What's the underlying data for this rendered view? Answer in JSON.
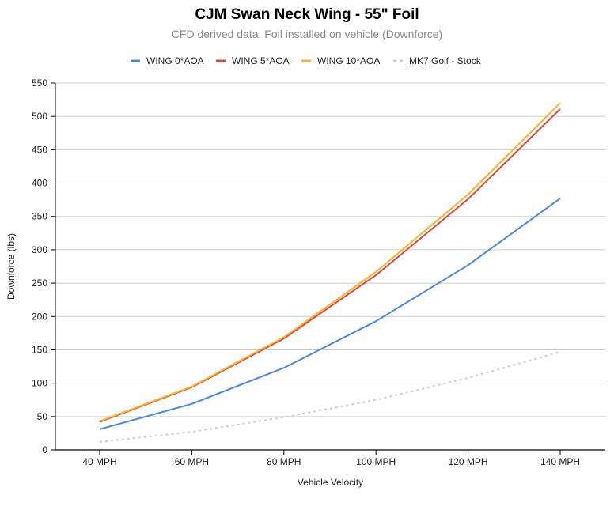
{
  "chart_data": {
    "type": "line",
    "title": "CJM Swan Neck Wing - 55\" Foil",
    "subtitle": "CFD derived data. Foil installed on vehicle (Downforce)",
    "xlabel": "Vehicle Velocity",
    "ylabel": "Downforce (lbs)",
    "categories": [
      "40 MPH",
      "60 MPH",
      "80 MPH",
      "100 MPH",
      "120 MPH",
      "140 MPH"
    ],
    "ylim": [
      0,
      550
    ],
    "yticks": [
      0,
      50,
      100,
      150,
      200,
      250,
      300,
      350,
      400,
      450,
      500,
      550
    ],
    "grid": true,
    "legend": "top",
    "series": [
      {
        "name": "WING 0*AOA",
        "color": "#4a86e8",
        "dashed": false,
        "values": [
          31,
          69,
          123,
          193,
          277,
          377
        ]
      },
      {
        "name": "WING 5*AOA",
        "color": "#e2433a",
        "dashed": false,
        "values": [
          42,
          94,
          167,
          262,
          376,
          511
        ]
      },
      {
        "name": "WING 10*AOA",
        "color": "#f6b42a",
        "dashed": false,
        "values": [
          43,
          95,
          169,
          267,
          383,
          520
        ]
      },
      {
        "name": "MK7 Golf - Stock",
        "color": "#cccccc",
        "dashed": true,
        "values": [
          12,
          27,
          49,
          75,
          108,
          147
        ]
      }
    ]
  }
}
